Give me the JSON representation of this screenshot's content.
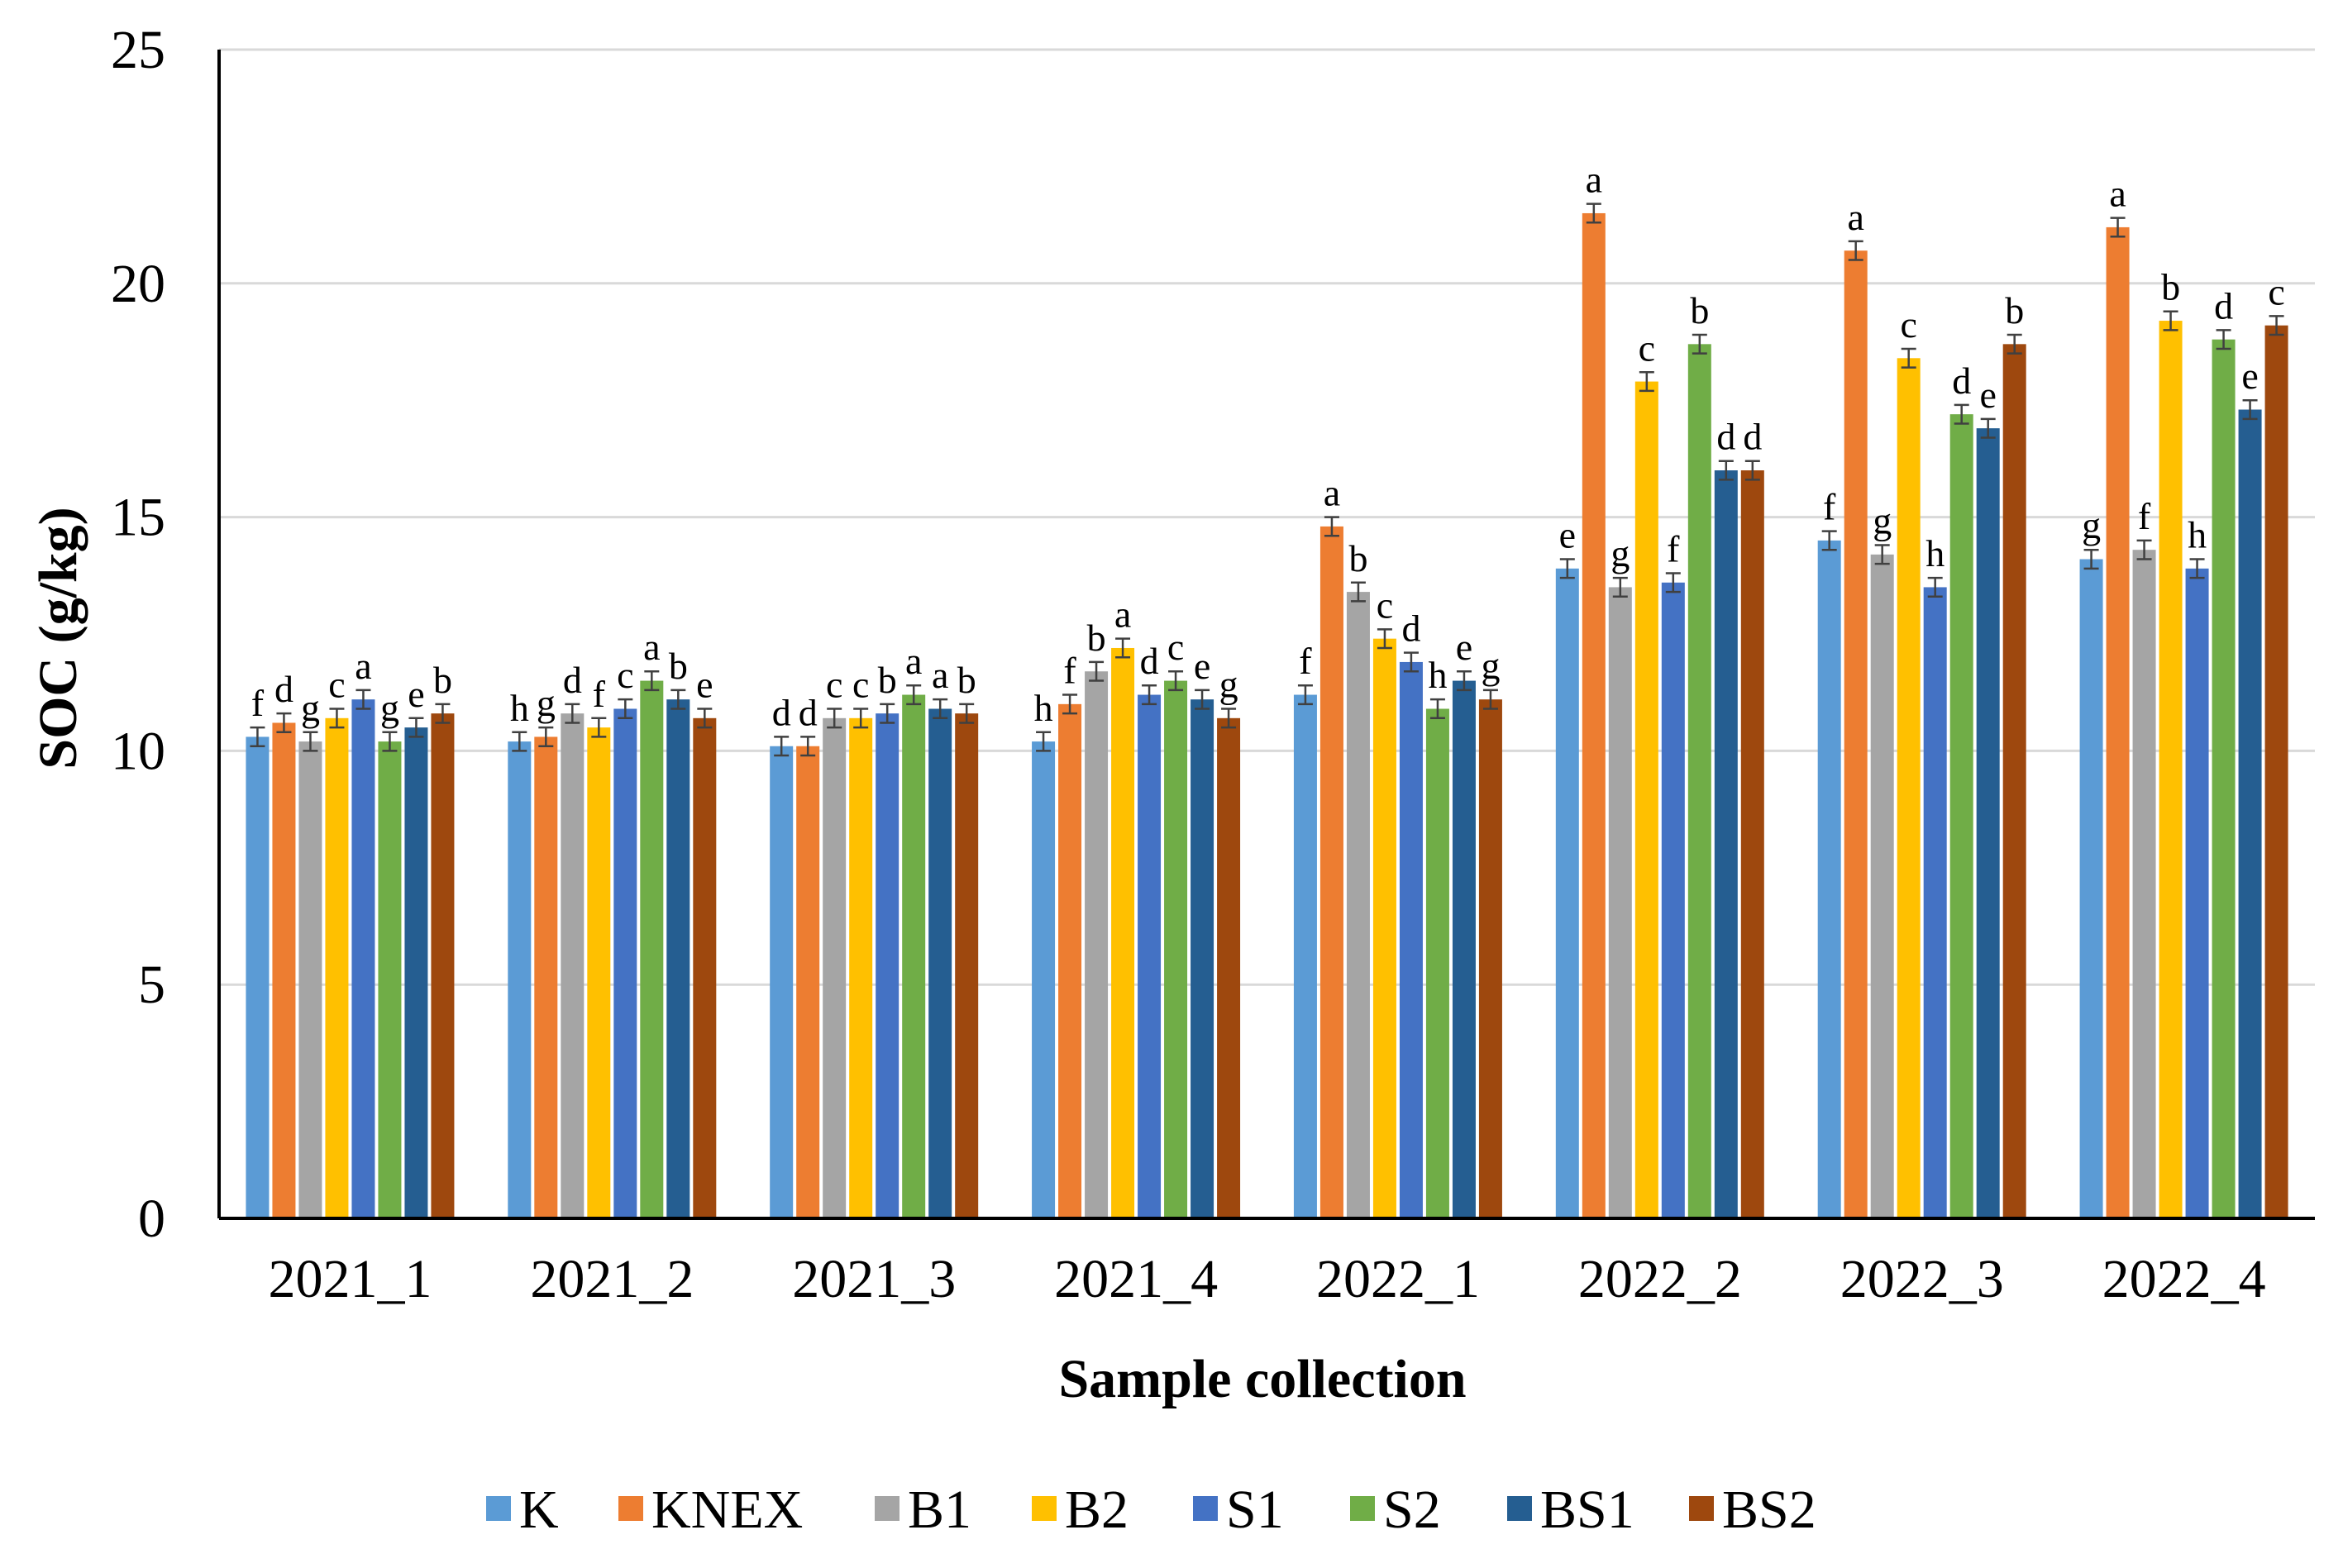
{
  "chart_data": {
    "type": "bar",
    "title": "",
    "xlabel": "Sample collection",
    "ylabel": "SOC (g/kg)",
    "ylim": [
      0,
      25
    ],
    "yticks": [
      0,
      5,
      10,
      15,
      20,
      25
    ],
    "grid": true,
    "legend_position": "bottom",
    "categories": [
      "2021_1",
      "2021_2",
      "2021_3",
      "2021_4",
      "2022_1",
      "2022_2",
      "2022_3",
      "2022_4"
    ],
    "series": [
      {
        "name": "K",
        "color": "#5B9BD5",
        "values": [
          10.3,
          10.2,
          10.1,
          10.2,
          11.2,
          13.9,
          14.5,
          14.1
        ],
        "letters": [
          "f",
          "h",
          "d",
          "h",
          "f",
          "e",
          "f",
          "g"
        ]
      },
      {
        "name": "KNEX",
        "color": "#ED7D31",
        "values": [
          10.6,
          10.3,
          10.1,
          11.0,
          14.8,
          21.5,
          20.7,
          21.2
        ],
        "letters": [
          "d",
          "g",
          "d",
          "f",
          "a",
          "a",
          "a",
          "a"
        ]
      },
      {
        "name": "B1",
        "color": "#A5A5A5",
        "values": [
          10.2,
          10.8,
          10.7,
          11.7,
          13.4,
          13.5,
          14.2,
          14.3
        ],
        "letters": [
          "g",
          "d",
          "c",
          "b",
          "b",
          "g",
          "g",
          "f"
        ]
      },
      {
        "name": "B2",
        "color": "#FFC000",
        "values": [
          10.7,
          10.5,
          10.7,
          12.2,
          12.4,
          17.9,
          18.4,
          19.2
        ],
        "letters": [
          "c",
          "f",
          "c",
          "a",
          "c",
          "c",
          "c",
          "b"
        ]
      },
      {
        "name": "S1",
        "color": "#4472C4",
        "values": [
          11.1,
          10.9,
          10.8,
          11.2,
          11.9,
          13.6,
          13.5,
          13.9
        ],
        "letters": [
          "a",
          "c",
          "b",
          "d",
          "d",
          "f",
          "h",
          "h"
        ]
      },
      {
        "name": "S2",
        "color": "#70AD47",
        "values": [
          10.2,
          11.5,
          11.2,
          11.5,
          10.9,
          18.7,
          17.2,
          18.8
        ],
        "letters": [
          "g",
          "a",
          "a",
          "c",
          "h",
          "b",
          "d",
          "d"
        ]
      },
      {
        "name": "BS1",
        "color": "#255E91",
        "values": [
          10.5,
          11.1,
          10.9,
          11.1,
          11.5,
          16.0,
          16.9,
          17.3
        ],
        "letters": [
          "e",
          "b",
          "a",
          "e",
          "e",
          "d",
          "e",
          "e"
        ]
      },
      {
        "name": "BS2",
        "color": "#9E480E",
        "values": [
          10.8,
          10.7,
          10.8,
          10.7,
          11.1,
          16.0,
          18.7,
          19.1
        ],
        "letters": [
          "b",
          "e",
          "b",
          "g",
          "g",
          "d",
          "b",
          "c"
        ]
      }
    ]
  }
}
